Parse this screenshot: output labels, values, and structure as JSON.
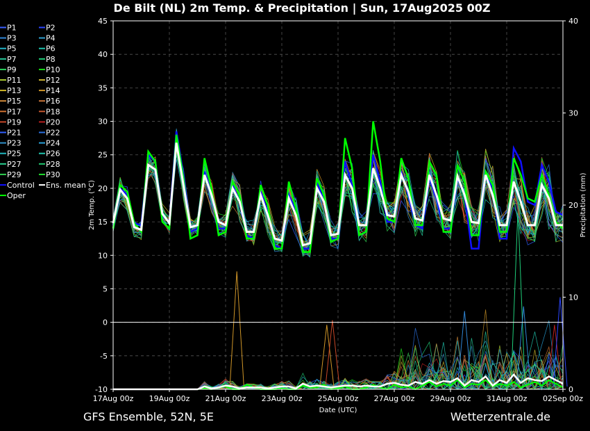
{
  "chart_data": {
    "type": "line",
    "title": "De Bilt  (NL)  2m Temp. & Precipitation | Sun, 17Aug2025 00Z",
    "xlabel": "Date (UTC)",
    "ylabel_left": "2m Temp. (°C)",
    "ylabel_right": "Precipitation (mm)",
    "footer_left": "GFS Ensemble, 52N, 5E",
    "footer_right": "Wetterzentrale.de",
    "x_ticks": [
      "17Aug 00z",
      "19Aug 00z",
      "21Aug 00z",
      "23Aug 00z",
      "25Aug 00z",
      "27Aug 00z",
      "29Aug 00z",
      "31Aug 00z",
      "02Sep 00z"
    ],
    "xlim_days": [
      0,
      16
    ],
    "time_step_hours": 6,
    "ylim_temp": [
      -10,
      45
    ],
    "y_ticks_temp": [
      -10,
      -5,
      0,
      5,
      10,
      15,
      20,
      25,
      30,
      35,
      40,
      45
    ],
    "ylim_precip": [
      0,
      40
    ],
    "y_ticks_precip": [
      0,
      10,
      20,
      30,
      40
    ],
    "grid": true,
    "legend_placement": "left",
    "legend": [
      {
        "name": "P1",
        "color": "#3a5fff"
      },
      {
        "name": "P2",
        "color": "#2b46ff"
      },
      {
        "name": "P3",
        "color": "#2f86d6"
      },
      {
        "name": "P4",
        "color": "#2f9fd0"
      },
      {
        "name": "P5",
        "color": "#22b4c8"
      },
      {
        "name": "P6",
        "color": "#1ec4b0"
      },
      {
        "name": "P7",
        "color": "#26c99a"
      },
      {
        "name": "P8",
        "color": "#1fcf7a"
      },
      {
        "name": "P9",
        "color": "#2ad45e"
      },
      {
        "name": "P10",
        "color": "#18e018"
      },
      {
        "name": "P11",
        "color": "#a8c830"
      },
      {
        "name": "P12",
        "color": "#c8b030"
      },
      {
        "name": "P13",
        "color": "#d0b828"
      },
      {
        "name": "P14",
        "color": "#d09628"
      },
      {
        "name": "P15",
        "color": "#d08a3a"
      },
      {
        "name": "P16",
        "color": "#c87438"
      },
      {
        "name": "P17",
        "color": "#d07030"
      },
      {
        "name": "P18",
        "color": "#c85830"
      },
      {
        "name": "P19",
        "color": "#c84828"
      },
      {
        "name": "P20",
        "color": "#b82020"
      },
      {
        "name": "P21",
        "color": "#3060ff"
      },
      {
        "name": "P22",
        "color": "#2a70e0"
      },
      {
        "name": "P23",
        "color": "#3090c8"
      },
      {
        "name": "P24",
        "color": "#28a0d8"
      },
      {
        "name": "P25",
        "color": "#20b8c0"
      },
      {
        "name": "P26",
        "color": "#20c8b0"
      },
      {
        "name": "P27",
        "color": "#28d090"
      },
      {
        "name": "P28",
        "color": "#20c870"
      },
      {
        "name": "P29",
        "color": "#30d050"
      },
      {
        "name": "P30",
        "color": "#20e030"
      },
      {
        "name": "Control",
        "color": "#1010ff"
      },
      {
        "name": "Ens. mean",
        "color": "#ffffff"
      },
      {
        "name": "Oper",
        "color": "#00ff00"
      }
    ],
    "temp_mean": [
      14.8,
      19.8,
      18.5,
      14.2,
      13.8,
      23.5,
      22.8,
      16.2,
      14.8,
      26.8,
      20.5,
      14.2,
      14.5,
      22.0,
      19.0,
      15.0,
      14.5,
      20.0,
      18.0,
      13.5,
      13.5,
      19.0,
      16.0,
      12.5,
      12.2,
      18.5,
      16.0,
      11.5,
      11.8,
      20.0,
      18.0,
      13.0,
      13.2,
      22.0,
      20.0,
      14.5,
      14.5,
      23.0,
      20.0,
      16.0,
      15.8,
      22.0,
      19.5,
      15.5,
      15.2,
      22.0,
      19.0,
      15.5,
      15.2,
      21.8,
      19.0,
      15.0,
      14.8,
      22.0,
      19.0,
      14.5,
      14.5,
      21.0,
      18.0,
      14.5,
      14.5,
      20.5,
      18.5,
      14.5,
      14.5
    ],
    "temp_oper": [
      14.0,
      20.5,
      19.5,
      14.8,
      13.5,
      25.5,
      24.0,
      15.0,
      14.0,
      28.0,
      21.5,
      12.5,
      13.0,
      24.5,
      20.0,
      13.0,
      13.5,
      21.0,
      19.0,
      12.5,
      12.5,
      20.5,
      17.5,
      11.0,
      11.0,
      21.0,
      17.0,
      10.5,
      10.5,
      21.5,
      19.0,
      12.0,
      12.5,
      27.5,
      23.0,
      13.0,
      13.5,
      30.0,
      24.0,
      15.5,
      15.0,
      24.5,
      21.5,
      14.5,
      14.5,
      24.0,
      22.0,
      13.5,
      13.5,
      23.5,
      21.0,
      13.0,
      13.0,
      22.5,
      20.5,
      13.5,
      13.5,
      24.5,
      22.0,
      18.5,
      18.0,
      22.0,
      19.0,
      15.0,
      14.0
    ],
    "temp_control": [
      14.5,
      20.0,
      19.0,
      14.8,
      14.5,
      25.0,
      24.0,
      16.0,
      15.0,
      28.5,
      22.0,
      13.5,
      14.0,
      22.5,
      19.0,
      14.0,
      14.0,
      20.5,
      18.0,
      13.0,
      12.5,
      19.5,
      16.5,
      11.5,
      11.0,
      19.0,
      16.5,
      11.0,
      11.0,
      21.0,
      18.0,
      12.5,
      12.5,
      24.0,
      20.5,
      13.0,
      13.5,
      25.0,
      21.0,
      15.0,
      15.0,
      22.5,
      19.0,
      14.5,
      14.0,
      21.5,
      18.5,
      14.0,
      14.0,
      21.5,
      19.0,
      11.0,
      11.0,
      22.5,
      20.0,
      12.5,
      12.5,
      26.0,
      24.0,
      18.0,
      17.5,
      23.5,
      21.0,
      16.5,
      16.0
    ],
    "precip_mean": [
      0,
      0,
      0,
      0,
      0,
      0,
      0,
      0,
      0,
      0,
      0,
      0,
      0,
      0.3,
      0.1,
      0.2,
      0.4,
      0.3,
      0.1,
      0.2,
      0.2,
      0.2,
      0.1,
      0.2,
      0.3,
      0.3,
      0.1,
      0.6,
      0.3,
      0.4,
      0.3,
      0.2,
      0.3,
      0.4,
      0.4,
      0.3,
      0.4,
      0.3,
      0.3,
      0.6,
      0.7,
      0.5,
      0.4,
      0.8,
      0.6,
      1.0,
      0.6,
      0.9,
      0.8,
      1.2,
      0.4,
      1.0,
      0.8,
      1.4,
      0.4,
      1.0,
      0.7,
      1.6,
      0.7,
      1.2,
      1.0,
      0.9,
      1.4,
      1.0,
      0.6
    ],
    "precip_oper": [
      0,
      0,
      0,
      0,
      0,
      0,
      0,
      0,
      0,
      0,
      0,
      0,
      0,
      0.1,
      0,
      0.2,
      0.3,
      0,
      0,
      0.5,
      0.2,
      0,
      0,
      0,
      0.1,
      0,
      0,
      0.4,
      0.2,
      0.2,
      0.5,
      0,
      0.1,
      0.3,
      0,
      0,
      0.2,
      0.5,
      0.2,
      0,
      0.5,
      0.2,
      0.3,
      0,
      0.4,
      0.8,
      0.3,
      0.6,
      0.4,
      1.0,
      0.2,
      0.6,
      0.5,
      1.0,
      0.3,
      0.6,
      0.4,
      0.8,
      0.2,
      0.5,
      0.8,
      0.4,
      1.0,
      0.6,
      0.2
    ],
    "precip_spikes": [
      {
        "day": 4.4,
        "mm": 12.8,
        "color": "#d09628"
      },
      {
        "day": 7.6,
        "mm": 7.0,
        "color": "#d09628"
      },
      {
        "day": 7.8,
        "mm": 7.5,
        "color": "#c84828"
      },
      {
        "day": 12.5,
        "mm": 8.5,
        "color": "#2f86d6"
      },
      {
        "day": 14.4,
        "mm": 19.5,
        "color": "#1fcf7a"
      },
      {
        "day": 14.6,
        "mm": 9.0,
        "color": "#2f86d6"
      },
      {
        "day": 15.7,
        "mm": 7.0,
        "color": "#b82020"
      },
      {
        "day": 15.9,
        "mm": 10.0,
        "color": "#2b46ff"
      }
    ]
  }
}
